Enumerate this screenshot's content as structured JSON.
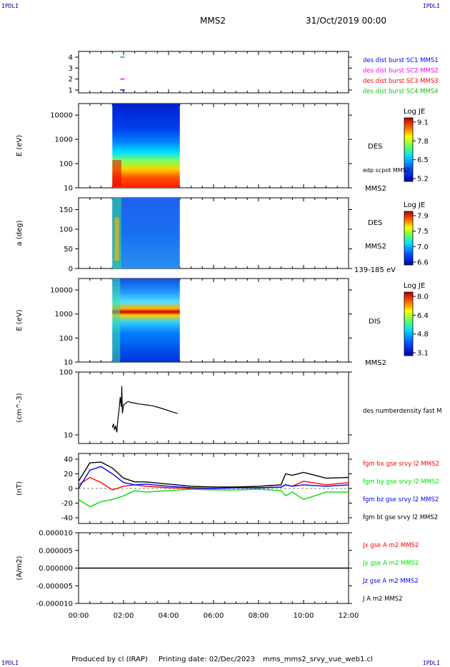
{
  "corner_label": "IPDLI",
  "header": {
    "spacecraft": "MMS2",
    "date": "31/Oct/2019 00:00"
  },
  "footer": {
    "produced_by": "Produced by cl (IRAP)",
    "printing_date": "Printing date: 02/Dec/2023",
    "file": "mms_mms2_srvy_vue_web1.cl"
  },
  "time_axis": {
    "ticks": [
      "00:00",
      "02:00",
      "04:00",
      "06:00",
      "08:00",
      "10:00",
      "12:00"
    ],
    "range_hours": [
      0,
      12
    ]
  },
  "colors": {
    "mms1": "#0000ff",
    "mms2": "#ff00ff",
    "mms3": "#ff0000",
    "mms4": "#00cc00",
    "bx": "#ff0000",
    "by": "#00dd00",
    "bz": "#0000ff",
    "bt": "#000000"
  },
  "chart_data": [
    {
      "type": "scatter",
      "panel": "availability",
      "yticks": [
        "1",
        "2",
        "3",
        "4"
      ],
      "legend": [
        {
          "label": "des dist burst SC1 MMS1",
          "color": "#0000ff"
        },
        {
          "label": "des dist burst SC2 MMS2",
          "color": "#ff00ff"
        },
        {
          "label": "des dist burst SC3 MMS3",
          "color": "#ff0000"
        },
        {
          "label": "des dist burst SC4 MMS4",
          "color": "#00cc00"
        }
      ],
      "points": [
        {
          "x": 1.95,
          "y": 1
        },
        {
          "x": 1.95,
          "y": 2
        },
        {
          "x": 1.95,
          "y": 4
        }
      ]
    },
    {
      "type": "heatmap",
      "panel": "des_energy",
      "ylabel": "E (eV)",
      "yticks": [
        "10",
        "100",
        "1000",
        "10000"
      ],
      "instrument": "DES",
      "extra_label": "edp scpot MMS2",
      "sc_label": "MMS2",
      "colorbar": {
        "title": "Log JE",
        "ticks": [
          "9.1",
          "7.8",
          "6.5",
          "5.2"
        ]
      },
      "x_range": [
        1.5,
        4.5
      ]
    },
    {
      "type": "heatmap",
      "panel": "des_pitch",
      "ylabel": "a (deg)",
      "yticks": [
        "0",
        "50",
        "100",
        "150"
      ],
      "instrument": "DES",
      "sc_label": "MMS2",
      "energy_label": "139-185 eV",
      "colorbar": {
        "title": "Log JE",
        "ticks": [
          "7.9",
          "7.5",
          "7.0",
          "6.6"
        ]
      },
      "x_range": [
        1.5,
        4.5
      ]
    },
    {
      "type": "heatmap",
      "panel": "dis_energy",
      "ylabel": "E (eV)",
      "yticks": [
        "10",
        "100",
        "1000",
        "10000"
      ],
      "instrument": "DIS",
      "sc_label": "MMS2",
      "colorbar": {
        "title": "Log JE",
        "ticks": [
          "8.0",
          "6.4",
          "4.8",
          "3.1"
        ]
      },
      "x_range": [
        1.5,
        4.5
      ]
    },
    {
      "type": "line",
      "panel": "density",
      "ylabel": "(cm^-3)",
      "yticks": [
        "10",
        "100"
      ],
      "legend": [
        {
          "label": "des numberdensity fast M",
          "color": "#000000"
        }
      ],
      "series": [
        {
          "name": "des numberdensity fast M",
          "x": [
            1.5,
            1.55,
            1.6,
            1.65,
            1.7,
            1.75,
            1.8,
            1.85,
            1.9,
            1.92,
            1.95,
            2.0,
            2.1,
            2.2,
            2.3,
            2.5,
            2.7,
            3.0,
            3.3,
            3.6,
            3.9,
            4.2,
            4.4
          ],
          "y": [
            13,
            15,
            12,
            14,
            11,
            18,
            25,
            40,
            28,
            60,
            22,
            30,
            32,
            34,
            33,
            32,
            31,
            30,
            29,
            27,
            25,
            23,
            22
          ]
        }
      ]
    },
    {
      "type": "line",
      "panel": "magnetic_field",
      "ylabel": "(nT)",
      "yticks": [
        "-40",
        "-20",
        "0",
        "20",
        "40"
      ],
      "legend": [
        {
          "label": "fgm bx gse srvy l2 MMS2",
          "color": "#ff0000"
        },
        {
          "label": "fgm by gse srvy l2 MMS2",
          "color": "#00dd00"
        },
        {
          "label": "fgm bz gse srvy l2 MMS2",
          "color": "#0000ff"
        },
        {
          "label": "fgm bt gse srvy l2 MMS2",
          "color": "#000000"
        }
      ],
      "series": [
        {
          "name": "bx",
          "x": [
            0,
            0.5,
            1,
            1.5,
            2,
            2.5,
            3,
            4,
            5,
            6,
            7,
            8,
            9,
            9.2,
            9.5,
            10,
            11,
            12
          ],
          "y": [
            5,
            15,
            8,
            -2,
            3,
            5,
            3,
            1,
            0,
            0,
            1,
            1,
            2,
            5,
            3,
            10,
            5,
            8
          ]
        },
        {
          "name": "by",
          "x": [
            0,
            0.5,
            1,
            1.5,
            2,
            2.5,
            3,
            4,
            5,
            6,
            7,
            8,
            9,
            9.2,
            9.5,
            10,
            11,
            12
          ],
          "y": [
            -15,
            -25,
            -18,
            -15,
            -10,
            -3,
            -5,
            -3,
            -1,
            -2,
            -2,
            -1,
            -3,
            -10,
            -5,
            -15,
            -5,
            -5
          ]
        },
        {
          "name": "bz",
          "x": [
            0,
            0.5,
            1,
            1.5,
            2,
            2.5,
            3,
            4,
            5,
            6,
            7,
            8,
            9,
            9.2,
            9.5,
            10,
            11,
            12
          ],
          "y": [
            0,
            25,
            30,
            20,
            8,
            5,
            6,
            3,
            1,
            0,
            1,
            1,
            2,
            5,
            3,
            5,
            3,
            5
          ]
        },
        {
          "name": "bt",
          "x": [
            0,
            0.5,
            1,
            1.5,
            2,
            2.5,
            3,
            4,
            5,
            6,
            7,
            8,
            9,
            9.2,
            9.5,
            10,
            11,
            12
          ],
          "y": [
            10,
            35,
            36,
            28,
            14,
            9,
            9,
            6,
            3,
            2,
            2,
            3,
            5,
            20,
            18,
            22,
            14,
            15
          ]
        }
      ]
    },
    {
      "type": "line",
      "panel": "current",
      "ylabel": "(A/m2)",
      "yticks": [
        "-0.000010",
        "-0.000005",
        "0.000000",
        "0.000005",
        "0.000010"
      ],
      "legend": [
        {
          "label": "Jx gse A m2 MMS2",
          "color": "#ff0000"
        },
        {
          "label": "Jy gse A m2 MMS2",
          "color": "#00dd00"
        },
        {
          "label": "Jz gse A m2 MMS2",
          "color": "#0000ff"
        },
        {
          "label": "J A m2 MMS2",
          "color": "#000000"
        }
      ],
      "series": [
        {
          "name": "J",
          "x": [
            0,
            12
          ],
          "y": [
            0,
            0
          ]
        }
      ]
    }
  ]
}
